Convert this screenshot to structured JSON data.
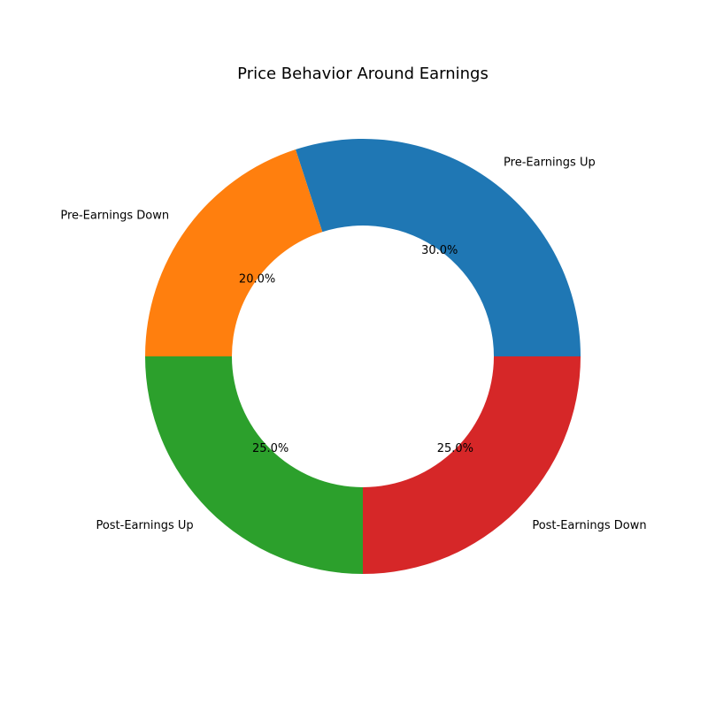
{
  "chart_data": {
    "type": "pie",
    "variant": "donut",
    "title": "Price Behavior Around Earnings",
    "categories": [
      "Pre-Earnings Up",
      "Pre-Earnings Down",
      "Post-Earnings Up",
      "Post-Earnings Down"
    ],
    "values": [
      30,
      20,
      25,
      25
    ],
    "percent_labels": [
      "30.0%",
      "20.0%",
      "25.0%",
      "25.0%"
    ],
    "colors": [
      "#1f77b4",
      "#ff7f0e",
      "#2ca02c",
      "#d62728"
    ],
    "start_angle_deg": 0,
    "direction": "counterclockwise",
    "legend": "none"
  }
}
